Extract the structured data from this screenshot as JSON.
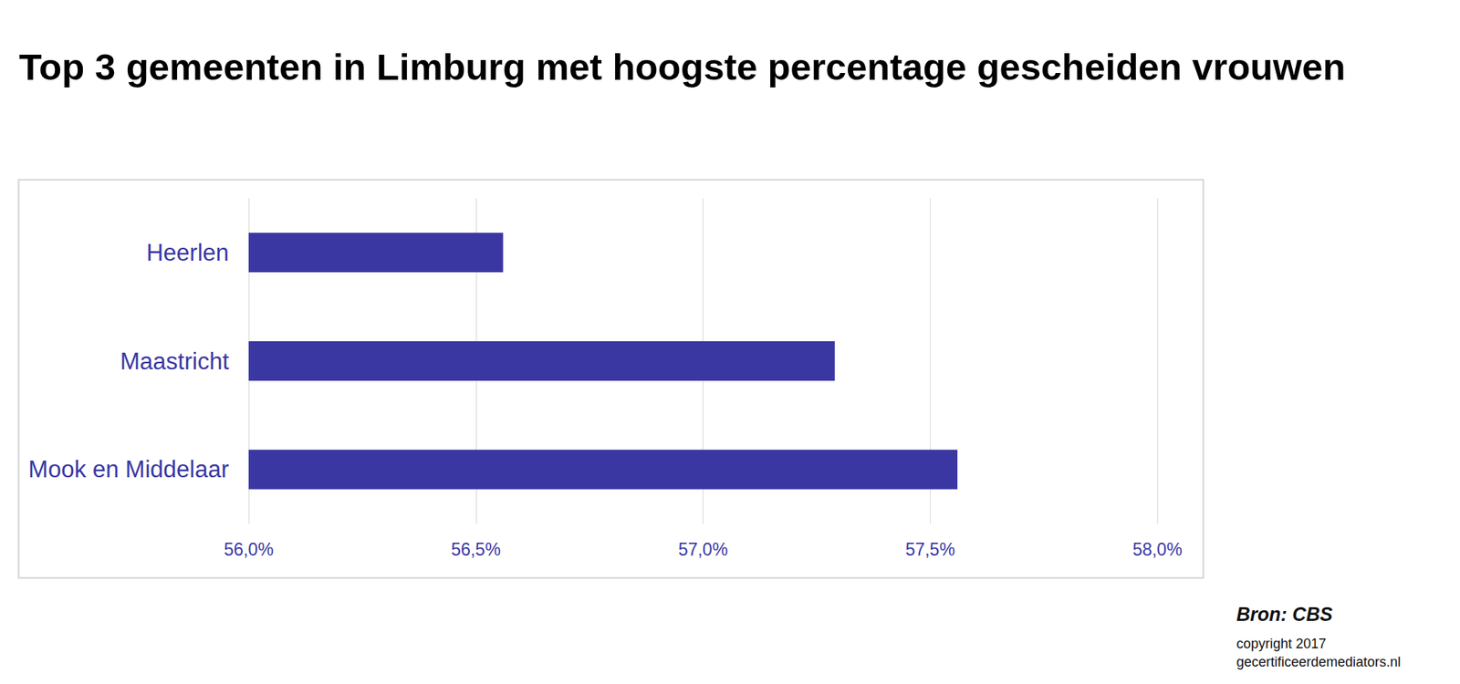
{
  "chart_data": {
    "type": "bar",
    "title": "Top 3 gemeenten in Limburg met hoogste percentage gescheiden vrouwen",
    "orientation": "horizontal",
    "categories": [
      "Heerlen",
      "Maastricht",
      "Mook en Middelaar"
    ],
    "values": [
      56.56,
      57.29,
      57.56
    ],
    "color": "#3a37a3",
    "xlim": [
      56,
      58
    ],
    "xticks": [
      {
        "value": 56,
        "label": "56,0%"
      },
      {
        "value": 56.5,
        "label": "56,5%"
      },
      {
        "value": 57,
        "label": "57,0%"
      },
      {
        "value": 57.5,
        "label": "57,5%"
      },
      {
        "value": 58,
        "label": "58,0%"
      }
    ],
    "grid": true,
    "source": "Bron: CBS",
    "notes": [
      "copyright 2017",
      "gecertificeerdemediators.nl"
    ]
  }
}
